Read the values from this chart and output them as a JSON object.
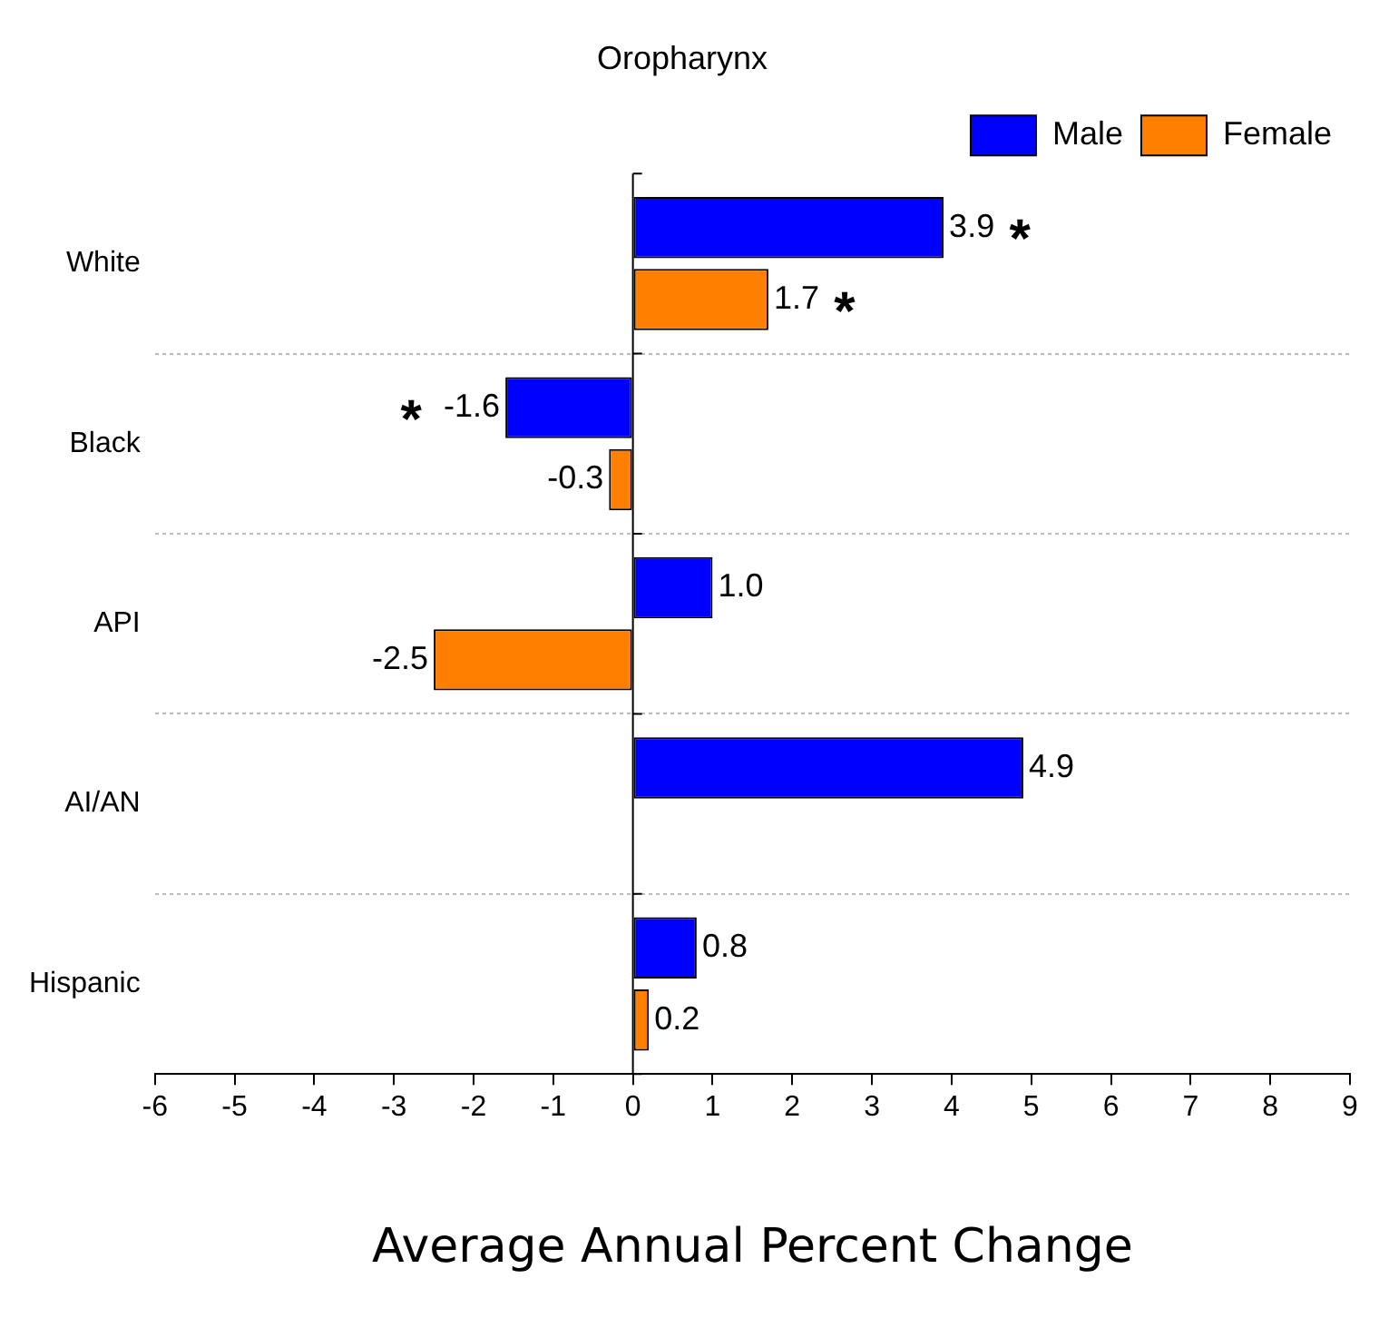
{
  "chart_data": {
    "type": "bar",
    "orientation": "horizontal",
    "title": "Oropharynx",
    "xlabel": "Average Annual Percent Change",
    "categories": [
      "White",
      "Black",
      "API",
      "AI/AN",
      "Hispanic"
    ],
    "series": [
      {
        "name": "Male",
        "color": "#0000ff",
        "values": [
          3.9,
          -1.6,
          1.0,
          4.9,
          0.8
        ],
        "value_labels": [
          "3.9",
          "-1.6",
          "1.0",
          "4.9",
          "0.8"
        ]
      },
      {
        "name": "Female",
        "color": "#ff8000",
        "values": [
          1.7,
          -0.3,
          -2.5,
          null,
          0.2
        ],
        "value_labels": [
          "1.7",
          "-0.3",
          "-2.5",
          null,
          "0.2"
        ]
      }
    ],
    "xlim": [
      -6,
      9
    ],
    "xticks": [
      -6,
      -5,
      -4,
      -3,
      -2,
      -1,
      0,
      1,
      2,
      3,
      4,
      5,
      6,
      7,
      8,
      9
    ],
    "grid": "y",
    "legend": "top right",
    "annotations": [
      {
        "text": "*",
        "x": 3.9,
        "y": "White"
      },
      {
        "text": "*",
        "x": 1.7,
        "y": "White"
      },
      {
        "text": "*",
        "x": -1.6,
        "y": "Black"
      }
    ]
  }
}
